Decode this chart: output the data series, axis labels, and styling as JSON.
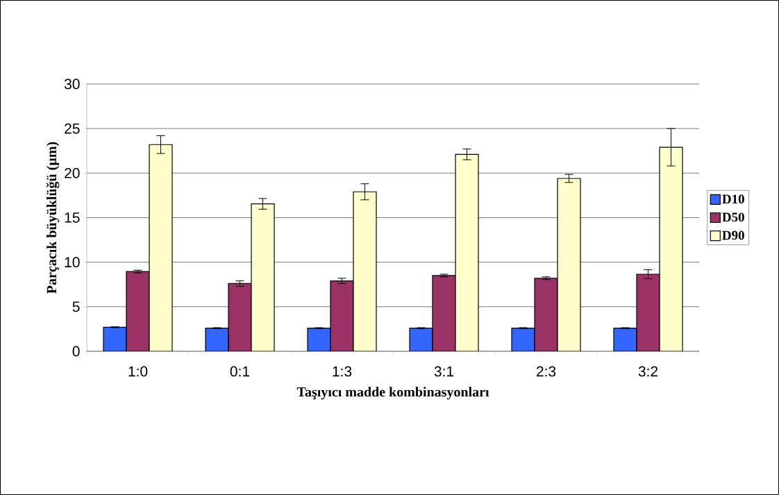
{
  "chart_data": {
    "type": "bar",
    "xlabel": "Taşıyıcı madde kombinasyonları",
    "ylabel": "Parçacık büyüklüğü (µm)",
    "categories": [
      "1:0",
      "0:1",
      "1:3",
      "3:1",
      "2:3",
      "3:2"
    ],
    "series": [
      {
        "name": "D10",
        "color": "#3366ff",
        "values": [
          2.7,
          2.6,
          2.6,
          2.6,
          2.6,
          2.6
        ],
        "errors": [
          0.05,
          0.05,
          0.05,
          0.05,
          0.05,
          0.05
        ]
      },
      {
        "name": "D50",
        "color": "#993366",
        "values": [
          8.95,
          7.6,
          7.9,
          8.5,
          8.2,
          8.65
        ],
        "errors": [
          0.15,
          0.3,
          0.3,
          0.15,
          0.15,
          0.5
        ]
      },
      {
        "name": "D90",
        "color": "#ffffcc",
        "values": [
          23.2,
          16.55,
          17.9,
          22.1,
          19.4,
          22.9
        ],
        "errors": [
          1.0,
          0.6,
          0.9,
          0.6,
          0.45,
          2.1
        ]
      }
    ],
    "ylim": [
      0,
      30
    ],
    "yticks": [
      0,
      5,
      10,
      15,
      20,
      25,
      30
    ],
    "grid": "y",
    "legend": "right"
  }
}
